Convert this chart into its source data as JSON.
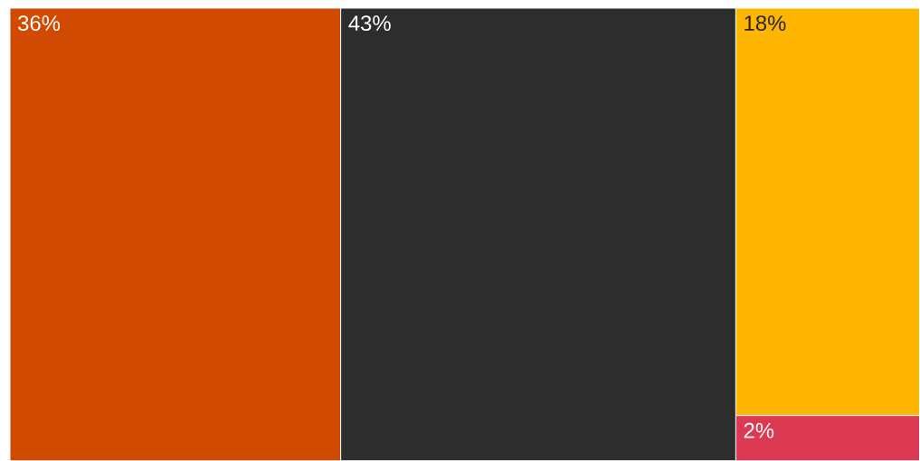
{
  "chart_data": {
    "type": "other",
    "categories": [
      null,
      null,
      null,
      null
    ],
    "values": [
      36,
      43,
      18,
      2
    ],
    "colors": [
      "#d04a02",
      "#2d2d2d",
      "#ffb600",
      "#db3a52"
    ],
    "value_labels": [
      "36%",
      "43%",
      "18%",
      "2%"
    ]
  }
}
